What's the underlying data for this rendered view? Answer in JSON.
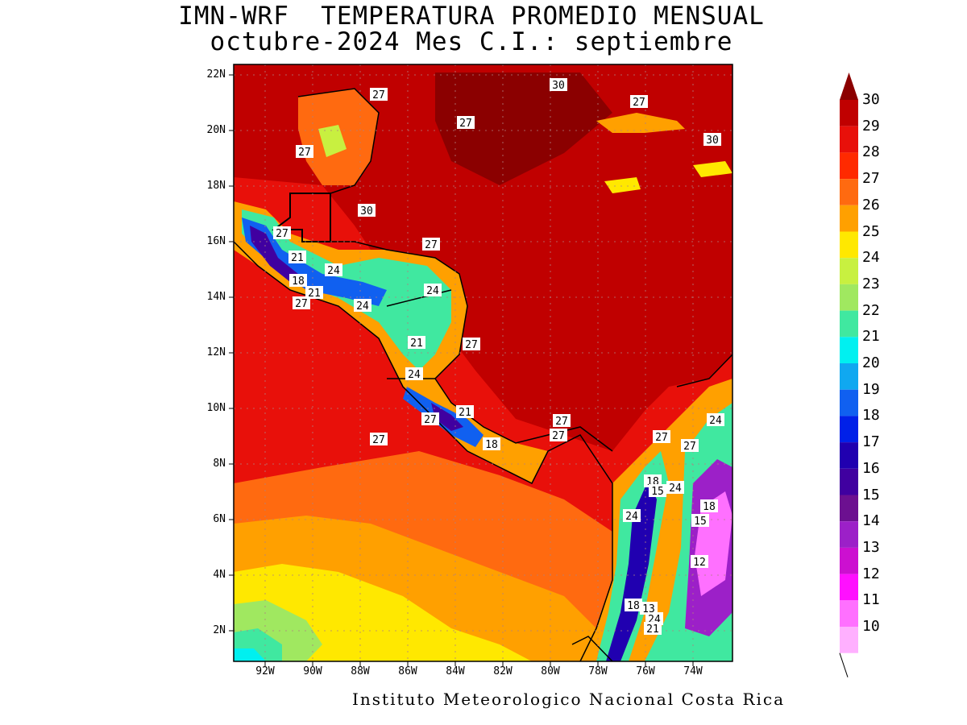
{
  "title_line1": "IMN-WRF  TEMPERATURA PROMEDIO MENSUAL",
  "title_line2": "octubre-2024 Mes C.I.: septiembre",
  "footer": "Instituto Meteorologico Nacional Costa Rica",
  "lat_labels": [
    "22N",
    "20N",
    "18N",
    "16N",
    "14N",
    "12N",
    "10N",
    "8N",
    "6N",
    "4N",
    "2N"
  ],
  "lon_labels": [
    "92W",
    "90W",
    "88W",
    "86W",
    "84W",
    "82W",
    "80W",
    "78W",
    "76W",
    "74W"
  ],
  "colorbar": {
    "levels": [
      "30",
      "29",
      "28",
      "27",
      "26",
      "25",
      "24",
      "23",
      "22",
      "21",
      "20",
      "19",
      "18",
      "17",
      "16",
      "15",
      "14",
      "13",
      "12",
      "11",
      "10"
    ],
    "colors": [
      "#8b0000",
      "#c00000",
      "#e8100a",
      "#ff2a00",
      "#ff6a10",
      "#ffa000",
      "#ffe800",
      "#c8f040",
      "#a0e860",
      "#40e8a0",
      "#00f0f0",
      "#10a8f0",
      "#1060f0",
      "#0020e8",
      "#2000b0",
      "#4000a0",
      "#6c1090",
      "#9c20c8",
      "#cc10d0",
      "#ff10ff",
      "#ff70ff",
      "#ffb0ff"
    ]
  },
  "contour_labels": [
    "27",
    "30",
    "27",
    "30",
    "27",
    "27",
    "30",
    "27",
    "27",
    "21",
    "24",
    "18",
    "21",
    "27",
    "24",
    "24",
    "27",
    "21",
    "24",
    "21",
    "27",
    "18",
    "27",
    "27",
    "27",
    "27",
    "27",
    "24",
    "18",
    "15",
    "24",
    "18",
    "24",
    "15",
    "12",
    "18",
    "13",
    "24",
    "21"
  ]
}
